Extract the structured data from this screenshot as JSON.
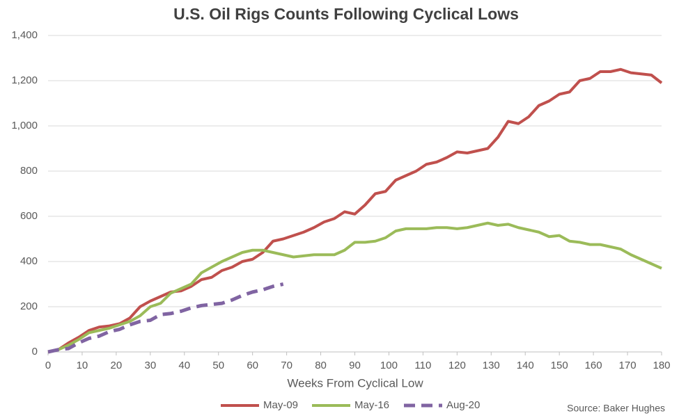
{
  "chart_data": {
    "type": "line",
    "title": "U.S. Oil Rigs Counts Following Cyclical Lows",
    "x_label": "Weeks From Cyclical Low",
    "annotation": "Source: Baker Hughes",
    "x": [
      0,
      3,
      6,
      9,
      12,
      15,
      18,
      21,
      24,
      27,
      30,
      33,
      36,
      39,
      42,
      45,
      48,
      51,
      54,
      57,
      60,
      63,
      66,
      69,
      72,
      75,
      78,
      81,
      84,
      87,
      90,
      93,
      96,
      99,
      102,
      105,
      108,
      111,
      114,
      117,
      120,
      123,
      126,
      129,
      132,
      135,
      138,
      141,
      144,
      147,
      150,
      153,
      156,
      159,
      162,
      165,
      168,
      171,
      174,
      177,
      180
    ],
    "series": [
      {
        "name": "May-09",
        "color": "#c0504d",
        "style": "solid",
        "values": [
          0,
          10,
          40,
          65,
          95,
          110,
          115,
          125,
          150,
          200,
          225,
          245,
          265,
          270,
          290,
          320,
          330,
          360,
          375,
          400,
          410,
          440,
          490,
          500,
          515,
          530,
          550,
          575,
          590,
          620,
          610,
          650,
          700,
          710,
          760,
          780,
          800,
          830,
          840,
          860,
          885,
          880,
          890,
          900,
          950,
          1020,
          1010,
          1040,
          1090,
          1110,
          1140,
          1150,
          1200,
          1210,
          1240,
          1240,
          1250,
          1235,
          1230,
          1225,
          1190
        ]
      },
      {
        "name": "May-16",
        "color": "#9bbb59",
        "style": "solid",
        "values": [
          0,
          10,
          30,
          55,
          85,
          95,
          105,
          120,
          135,
          160,
          200,
          215,
          260,
          280,
          300,
          350,
          375,
          400,
          420,
          440,
          450,
          450,
          440,
          430,
          420,
          425,
          430,
          430,
          430,
          450,
          485,
          485,
          490,
          505,
          535,
          545,
          545,
          545,
          550,
          550,
          545,
          550,
          560,
          570,
          560,
          565,
          550,
          540,
          530,
          510,
          515,
          490,
          485,
          475,
          475,
          465,
          455,
          430,
          410,
          390,
          370
        ]
      },
      {
        "name": "Aug-20",
        "color": "#8064a2",
        "style": "dashed",
        "values": [
          0,
          10,
          15,
          40,
          60,
          70,
          90,
          100,
          120,
          135,
          140,
          165,
          170,
          180,
          195,
          205,
          210,
          215,
          230,
          250,
          265,
          275,
          290,
          300,
          null,
          null,
          null,
          null,
          null,
          null,
          null,
          null,
          null,
          null,
          null,
          null,
          null,
          null,
          null,
          null,
          null,
          null,
          null,
          null,
          null,
          null,
          null,
          null,
          null,
          null,
          null,
          null,
          null,
          null,
          null,
          null,
          null,
          null,
          null,
          null,
          null
        ]
      }
    ],
    "xlim": [
      0,
      180
    ],
    "xticks": [
      0,
      10,
      20,
      30,
      40,
      50,
      60,
      70,
      80,
      90,
      100,
      110,
      120,
      130,
      140,
      150,
      160,
      170,
      180
    ],
    "ylim": [
      0,
      1400
    ],
    "yticks": [
      0,
      200,
      400,
      600,
      800,
      {
        "value": 1000,
        "label": "1,000"
      },
      {
        "value": 1200,
        "label": "1,200"
      },
      {
        "value": 1400,
        "label": "1,400"
      }
    ],
    "grid": true,
    "legend": "bottom"
  }
}
